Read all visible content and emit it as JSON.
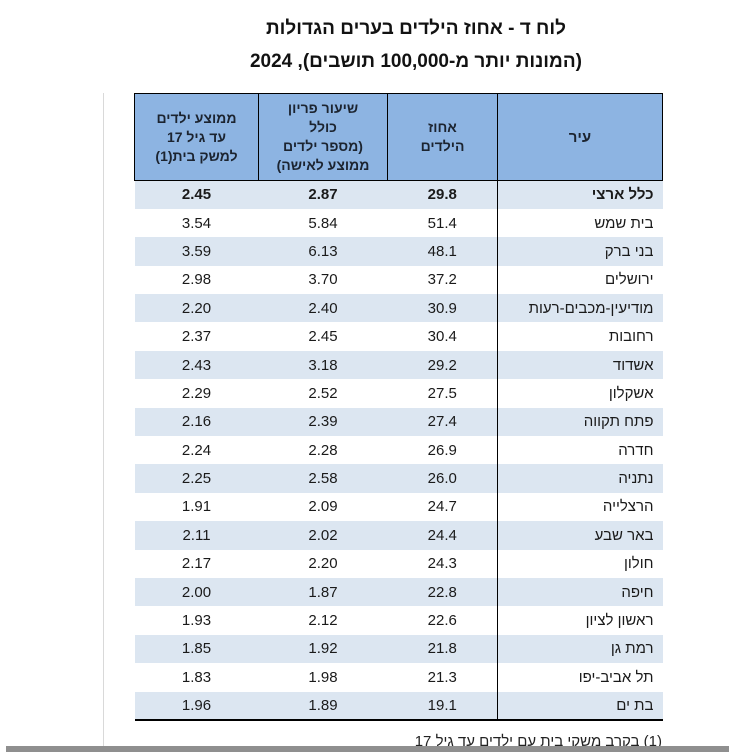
{
  "page": {
    "title_line1": "לוח ד - אחוז הילדים בערים הגדולות",
    "title_line2": "(המונות יותר מ-100,000 תושבים), 2024",
    "footnote": "(1) בקרב משקי בית עם ילדים עד גיל 17"
  },
  "colors": {
    "header_bg": "#8db4e2",
    "stripe_bg": "#dce6f1",
    "border": "#000000",
    "bottom_bar": "#8f8f8f"
  },
  "table": {
    "columns": [
      {
        "key": "city",
        "label": "עיר"
      },
      {
        "key": "pct_children",
        "label": "אחוז\nהילדים"
      },
      {
        "key": "total_fertility",
        "label": "שיעור פריון\nכולל\n(מספר ילדים\nממוצע לאישה)"
      },
      {
        "key": "avg_children_household",
        "label": "ממוצע ילדים\nעד גיל 17\nלמשק בית(1)"
      }
    ],
    "rows": [
      {
        "city": "כלל ארצי",
        "values": [
          "29.8",
          "2.87",
          "2.45"
        ],
        "bold": true
      },
      {
        "city": "בית שמש",
        "values": [
          "51.4",
          "5.84",
          "3.54"
        ]
      },
      {
        "city": "בני ברק",
        "values": [
          "48.1",
          "6.13",
          "3.59"
        ]
      },
      {
        "city": "ירושלים",
        "values": [
          "37.2",
          "3.70",
          "2.98"
        ]
      },
      {
        "city": "מודיעין-מכבים-רעות",
        "values": [
          "30.9",
          "2.40",
          "2.20"
        ]
      },
      {
        "city": "רחובות",
        "values": [
          "30.4",
          "2.45",
          "2.37"
        ]
      },
      {
        "city": "אשדוד",
        "values": [
          "29.2",
          "3.18",
          "2.43"
        ]
      },
      {
        "city": "אשקלון",
        "values": [
          "27.5",
          "2.52",
          "2.29"
        ]
      },
      {
        "city": "פתח תקווה",
        "values": [
          "27.4",
          "2.39",
          "2.16"
        ]
      },
      {
        "city": "חדרה",
        "values": [
          "26.9",
          "2.28",
          "2.24"
        ]
      },
      {
        "city": "נתניה",
        "values": [
          "26.0",
          "2.58",
          "2.25"
        ]
      },
      {
        "city": "הרצלייה",
        "values": [
          "24.7",
          "2.09",
          "1.91"
        ]
      },
      {
        "city": "באר שבע",
        "values": [
          "24.4",
          "2.02",
          "2.11"
        ]
      },
      {
        "city": "חולון",
        "values": [
          "24.3",
          "2.20",
          "2.17"
        ]
      },
      {
        "city": "חיפה",
        "values": [
          "22.8",
          "1.87",
          "2.00"
        ]
      },
      {
        "city": "ראשון לציון",
        "values": [
          "22.6",
          "2.12",
          "1.93"
        ]
      },
      {
        "city": "רמת גן",
        "values": [
          "21.8",
          "1.92",
          "1.85"
        ]
      },
      {
        "city": "תל אביב-יפו",
        "values": [
          "21.3",
          "1.98",
          "1.83"
        ]
      },
      {
        "city": "בת ים",
        "values": [
          "19.1",
          "1.89",
          "1.96"
        ]
      }
    ]
  }
}
